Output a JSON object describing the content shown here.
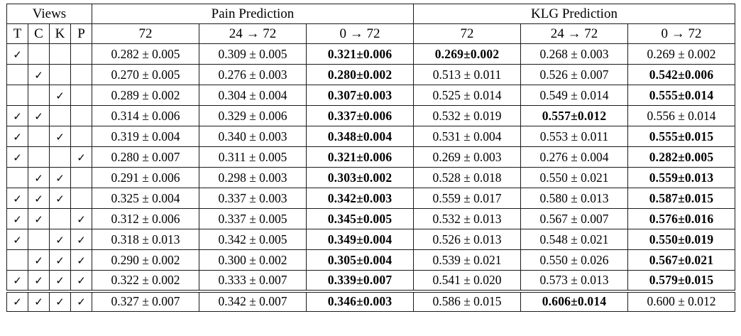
{
  "table": {
    "check_glyph": "✓",
    "colors": {
      "background": "#ffffff",
      "border": "#1a1a1a",
      "text": "#000000"
    },
    "header": {
      "views_label": "Views",
      "pain_label": "Pain Prediction",
      "klg_label": "KLG Prediction",
      "view_cols": [
        "T",
        "C",
        "K",
        "P"
      ],
      "sub_cols": [
        "72",
        "24 → 72",
        "0 → 72"
      ]
    },
    "rows": [
      {
        "checks": [
          true,
          false,
          false,
          false
        ],
        "values": [
          "0.282 ± 0.005",
          "0.309 ± 0.005",
          "0.321±0.006",
          "0.269±0.002",
          "0.268 ± 0.003",
          "0.269 ± 0.002"
        ],
        "bold": [
          false,
          false,
          true,
          true,
          false,
          false
        ],
        "separated": false
      },
      {
        "checks": [
          false,
          true,
          false,
          false
        ],
        "values": [
          "0.270 ± 0.005",
          "0.276 ± 0.003",
          "0.280±0.002",
          "0.513 ± 0.011",
          "0.526 ± 0.007",
          "0.542±0.006"
        ],
        "bold": [
          false,
          false,
          true,
          false,
          false,
          true
        ],
        "separated": false
      },
      {
        "checks": [
          false,
          false,
          true,
          false
        ],
        "values": [
          "0.289 ± 0.002",
          "0.304 ± 0.004",
          "0.307±0.003",
          "0.525 ± 0.014",
          "0.549 ± 0.014",
          "0.555±0.014"
        ],
        "bold": [
          false,
          false,
          true,
          false,
          false,
          true
        ],
        "separated": false
      },
      {
        "checks": [
          true,
          true,
          false,
          false
        ],
        "values": [
          "0.314 ± 0.006",
          "0.329 ± 0.006",
          "0.337±0.006",
          "0.532 ± 0.019",
          "0.557±0.012",
          "0.556 ± 0.014"
        ],
        "bold": [
          false,
          false,
          true,
          false,
          true,
          false
        ],
        "separated": false
      },
      {
        "checks": [
          true,
          false,
          true,
          false
        ],
        "values": [
          "0.319 ± 0.004",
          "0.340 ± 0.003",
          "0.348±0.004",
          "0.531 ± 0.004",
          "0.553 ± 0.011",
          "0.555±0.015"
        ],
        "bold": [
          false,
          false,
          true,
          false,
          false,
          true
        ],
        "separated": false
      },
      {
        "checks": [
          true,
          false,
          false,
          true
        ],
        "values": [
          "0.280 ± 0.007",
          "0.311 ± 0.005",
          "0.321±0.006",
          "0.269 ± 0.003",
          "0.276 ± 0.004",
          "0.282±0.005"
        ],
        "bold": [
          false,
          false,
          true,
          false,
          false,
          true
        ],
        "separated": false
      },
      {
        "checks": [
          false,
          true,
          true,
          false
        ],
        "values": [
          "0.291 ± 0.006",
          "0.298 ± 0.003",
          "0.303±0.002",
          "0.528 ± 0.018",
          "0.550 ± 0.021",
          "0.559±0.013"
        ],
        "bold": [
          false,
          false,
          true,
          false,
          false,
          true
        ],
        "separated": false
      },
      {
        "checks": [
          true,
          true,
          true,
          false
        ],
        "values": [
          "0.325 ± 0.004",
          "0.337 ± 0.003",
          "0.342±0.003",
          "0.559 ± 0.017",
          "0.580 ± 0.013",
          "0.587±0.015"
        ],
        "bold": [
          false,
          false,
          true,
          false,
          false,
          true
        ],
        "separated": false
      },
      {
        "checks": [
          true,
          true,
          false,
          true
        ],
        "values": [
          "0.312 ± 0.006",
          "0.337 ± 0.005",
          "0.345±0.005",
          "0.532 ± 0.013",
          "0.567 ± 0.007",
          "0.576±0.016"
        ],
        "bold": [
          false,
          false,
          true,
          false,
          false,
          true
        ],
        "separated": false
      },
      {
        "checks": [
          true,
          false,
          true,
          true
        ],
        "values": [
          "0.318 ± 0.013",
          "0.342 ± 0.005",
          "0.349±0.004",
          "0.526 ± 0.013",
          "0.548 ± 0.021",
          "0.550±0.019"
        ],
        "bold": [
          false,
          false,
          true,
          false,
          false,
          true
        ],
        "separated": false
      },
      {
        "checks": [
          false,
          true,
          true,
          true
        ],
        "values": [
          "0.290 ± 0.002",
          "0.300 ± 0.002",
          "0.305±0.004",
          "0.539 ± 0.021",
          "0.550 ± 0.026",
          "0.567±0.021"
        ],
        "bold": [
          false,
          false,
          true,
          false,
          false,
          true
        ],
        "separated": false
      },
      {
        "checks": [
          true,
          true,
          true,
          true
        ],
        "values": [
          "0.322 ± 0.002",
          "0.333 ± 0.007",
          "0.339±0.007",
          "0.541 ± 0.020",
          "0.573 ± 0.013",
          "0.579±0.015"
        ],
        "bold": [
          false,
          false,
          true,
          false,
          false,
          true
        ],
        "separated": false
      },
      {
        "checks": [
          true,
          true,
          true,
          true
        ],
        "values": [
          "0.327 ± 0.007",
          "0.342 ± 0.007",
          "0.346±0.003",
          "0.586 ± 0.015",
          "0.606±0.014",
          "0.600 ± 0.012"
        ],
        "bold": [
          false,
          false,
          true,
          false,
          true,
          false
        ],
        "separated": true
      }
    ]
  }
}
